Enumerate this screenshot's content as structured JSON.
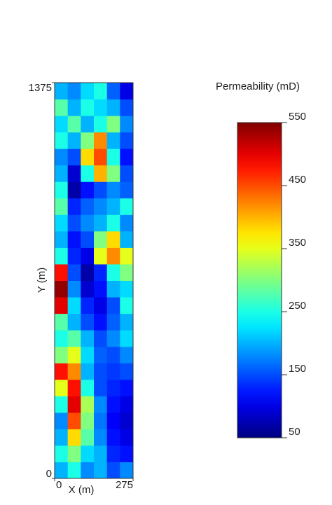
{
  "chart_data": {
    "type": "heatmap",
    "xlabel": "X (m)",
    "ylabel": "Y (m)",
    "xlim": [
      0,
      275
    ],
    "xticks": [
      0,
      275
    ],
    "ylim": [
      0,
      1375
    ],
    "yticks": [
      0,
      1375
    ],
    "colormap": "jet",
    "z_order": "bottom-to-top",
    "z": [
      [
        200,
        250,
        180,
        200,
        150,
        180
      ],
      [
        250,
        300,
        220,
        200,
        130,
        120
      ],
      [
        200,
        380,
        280,
        180,
        120,
        100
      ],
      [
        180,
        450,
        300,
        170,
        110,
        90
      ],
      [
        250,
        500,
        320,
        180,
        120,
        100
      ],
      [
        350,
        480,
        250,
        150,
        130,
        120
      ],
      [
        480,
        420,
        200,
        150,
        140,
        150
      ],
      [
        300,
        350,
        220,
        160,
        150,
        180
      ],
      [
        250,
        280,
        200,
        150,
        180,
        220
      ],
      [
        280,
        200,
        150,
        120,
        160,
        200
      ],
      [
        500,
        220,
        130,
        100,
        150,
        250
      ],
      [
        540,
        180,
        90,
        120,
        200,
        220
      ],
      [
        480,
        150,
        70,
        130,
        250,
        300
      ],
      [
        250,
        130,
        100,
        350,
        420,
        350
      ],
      [
        200,
        120,
        150,
        300,
        380,
        200
      ],
      [
        220,
        150,
        180,
        200,
        250,
        180
      ],
      [
        280,
        130,
        160,
        180,
        200,
        250
      ],
      [
        250,
        70,
        120,
        150,
        180,
        160
      ],
      [
        200,
        90,
        250,
        400,
        300,
        150
      ],
      [
        180,
        150,
        380,
        450,
        250,
        120
      ],
      [
        250,
        200,
        300,
        420,
        200,
        150
      ],
      [
        220,
        280,
        200,
        250,
        300,
        180
      ],
      [
        280,
        200,
        250,
        220,
        200,
        150
      ],
      [
        200,
        180,
        220,
        250,
        160,
        100
      ]
    ],
    "colorbar": {
      "title": "Permeability (mD)",
      "lim": [
        50,
        550
      ],
      "ticks": [
        50,
        150,
        250,
        350,
        450,
        550
      ]
    }
  }
}
